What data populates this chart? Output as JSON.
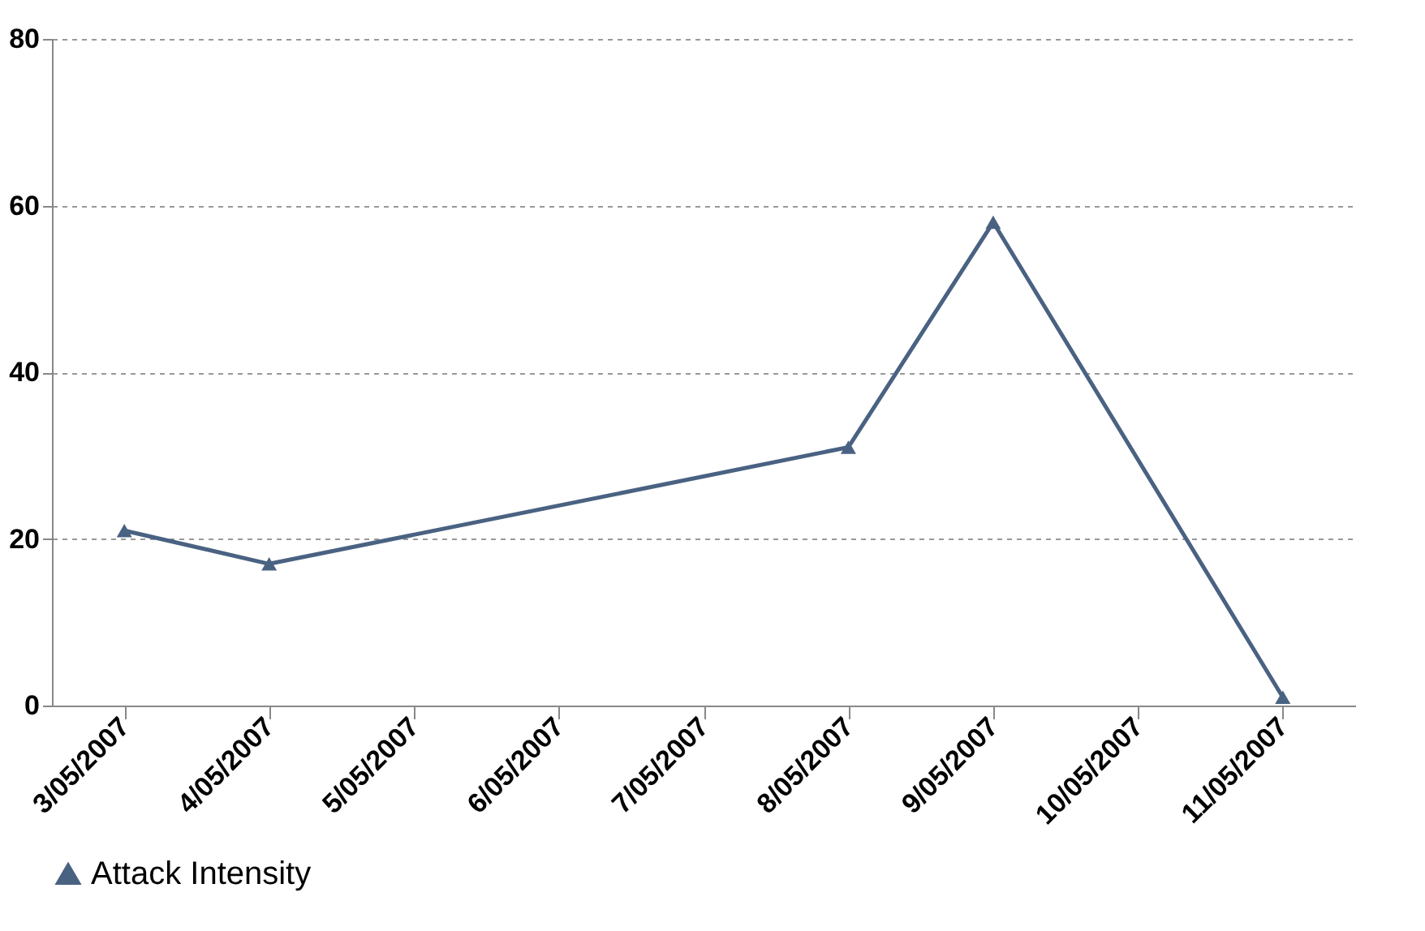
{
  "chart_data": {
    "type": "line",
    "x": [
      "2007-05-03",
      "2007-05-04",
      "2007-05-08",
      "2007-05-09",
      "2007-05-11"
    ],
    "series": [
      {
        "name": "Attack Intensity",
        "color": "#4a6282",
        "values": [
          21,
          17,
          31,
          58,
          1
        ]
      }
    ],
    "xlim": [
      "2007-05-02T12:00",
      "2007-05-11T12:00"
    ],
    "xticks": [
      {
        "value": "2007-05-03",
        "label": "3/05/2007"
      },
      {
        "value": "2007-05-04",
        "label": "4/05/2007"
      },
      {
        "value": "2007-05-05",
        "label": "5/05/2007"
      },
      {
        "value": "2007-05-06",
        "label": "6/05/2007"
      },
      {
        "value": "2007-05-07",
        "label": "7/05/2007"
      },
      {
        "value": "2007-05-08",
        "label": "8/05/2007"
      },
      {
        "value": "2007-05-09",
        "label": "9/05/2007"
      },
      {
        "value": "2007-05-10",
        "label": "10/05/2007"
      },
      {
        "value": "2007-05-11",
        "label": "11/05/2007"
      }
    ],
    "ylim": [
      0,
      80
    ],
    "yticks": [
      0,
      20,
      40,
      60,
      80
    ],
    "grid": "y",
    "legend": "bottom",
    "marker": "triangle",
    "line_style": "solid"
  }
}
